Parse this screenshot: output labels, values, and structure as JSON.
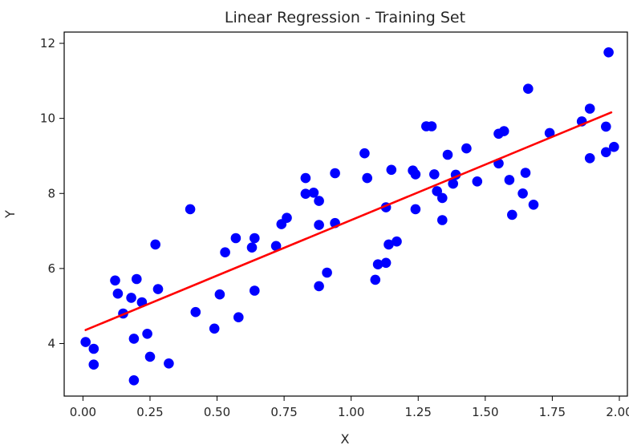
{
  "chart_data": {
    "type": "scatter",
    "title": "Linear Regression - Training Set",
    "xlabel": "X",
    "ylabel": "Y",
    "xlim": [
      -0.07,
      2.03
    ],
    "ylim": [
      2.6,
      12.3
    ],
    "xticks": [
      "0.00",
      "0.25",
      "0.50",
      "0.75",
      "1.00",
      "1.25",
      "1.50",
      "1.75",
      "2.00"
    ],
    "yticks": [
      "4",
      "6",
      "8",
      "10",
      "12"
    ],
    "grid": false,
    "colors": {
      "points": "#0000ff",
      "line": "#ff0000"
    },
    "series": [
      {
        "kind": "scatter",
        "points": [
          [
            0.01,
            4.04
          ],
          [
            0.04,
            3.86
          ],
          [
            0.04,
            3.44
          ],
          [
            0.12,
            5.68
          ],
          [
            0.13,
            5.33
          ],
          [
            0.15,
            4.8
          ],
          [
            0.18,
            5.22
          ],
          [
            0.19,
            3.02
          ],
          [
            0.19,
            4.13
          ],
          [
            0.2,
            5.72
          ],
          [
            0.22,
            5.1
          ],
          [
            0.24,
            4.26
          ],
          [
            0.25,
            3.65
          ],
          [
            0.27,
            6.64
          ],
          [
            0.28,
            5.45
          ],
          [
            0.32,
            3.47
          ],
          [
            0.4,
            7.58
          ],
          [
            0.42,
            4.84
          ],
          [
            0.49,
            4.4
          ],
          [
            0.51,
            5.31
          ],
          [
            0.53,
            6.43
          ],
          [
            0.57,
            6.81
          ],
          [
            0.58,
            4.7
          ],
          [
            0.63,
            6.56
          ],
          [
            0.64,
            6.81
          ],
          [
            0.64,
            5.41
          ],
          [
            0.72,
            6.6
          ],
          [
            0.74,
            7.18
          ],
          [
            0.76,
            7.35
          ],
          [
            0.83,
            8.41
          ],
          [
            0.83,
            7.99
          ],
          [
            0.86,
            8.02
          ],
          [
            0.88,
            7.8
          ],
          [
            0.88,
            7.16
          ],
          [
            0.88,
            5.53
          ],
          [
            0.91,
            5.89
          ],
          [
            0.94,
            8.54
          ],
          [
            0.94,
            7.21
          ],
          [
            1.05,
            9.07
          ],
          [
            1.06,
            8.41
          ],
          [
            1.09,
            5.7
          ],
          [
            1.1,
            6.11
          ],
          [
            1.13,
            6.15
          ],
          [
            1.13,
            7.63
          ],
          [
            1.14,
            6.64
          ],
          [
            1.15,
            8.63
          ],
          [
            1.17,
            6.72
          ],
          [
            1.23,
            8.61
          ],
          [
            1.24,
            8.51
          ],
          [
            1.24,
            7.58
          ],
          [
            1.28,
            9.79
          ],
          [
            1.3,
            9.79
          ],
          [
            1.31,
            8.51
          ],
          [
            1.32,
            8.06
          ],
          [
            1.34,
            7.29
          ],
          [
            1.34,
            7.88
          ],
          [
            1.36,
            9.03
          ],
          [
            1.38,
            8.26
          ],
          [
            1.39,
            8.5
          ],
          [
            1.43,
            9.2
          ],
          [
            1.47,
            8.32
          ],
          [
            1.55,
            9.59
          ],
          [
            1.55,
            8.8
          ],
          [
            1.57,
            9.66
          ],
          [
            1.59,
            8.36
          ],
          [
            1.6,
            7.43
          ],
          [
            1.64,
            8.0
          ],
          [
            1.65,
            8.55
          ],
          [
            1.66,
            10.79
          ],
          [
            1.68,
            7.7
          ],
          [
            1.74,
            9.61
          ],
          [
            1.86,
            9.92
          ],
          [
            1.89,
            10.26
          ],
          [
            1.89,
            8.94
          ],
          [
            1.95,
            9.1
          ],
          [
            1.95,
            9.78
          ],
          [
            1.96,
            11.76
          ],
          [
            1.98,
            9.24
          ]
        ]
      },
      {
        "kind": "line",
        "points": [
          [
            0.01,
            4.36
          ],
          [
            1.97,
            10.16
          ]
        ]
      }
    ]
  }
}
